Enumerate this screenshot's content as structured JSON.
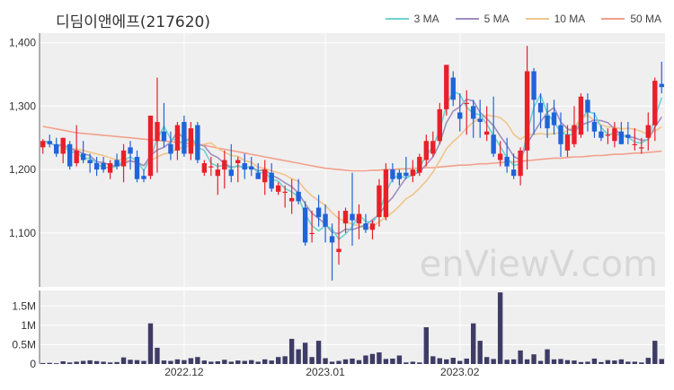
{
  "colors": {
    "up": "#e8202a",
    "down": "#1f64d8",
    "ma3": "#6fd2d2",
    "ma5": "#a08fc0",
    "ma10": "#f1c48b",
    "ma50": "#f2a08b",
    "volume": "#3e3c66",
    "panel_bg": "#efefef",
    "grid": "#ffffff"
  },
  "chart_data": {
    "type": "candlestick",
    "title": "디딤이앤에프(217620)",
    "watermark": "enViewV.com",
    "legend": [
      "3 MA",
      "5 MA",
      "10 MA",
      "50 MA"
    ],
    "legend_position": "top-right",
    "price_axis": {
      "ticks": [
        "1,100",
        "1,200",
        "1,300",
        "1,400"
      ],
      "tick_values": [
        1100,
        1200,
        1300,
        1400
      ],
      "range": [
        1015,
        1415
      ]
    },
    "volume_axis": {
      "ticks": [
        "0",
        "0.5M",
        "1M",
        "1.5M"
      ],
      "tick_values": [
        0,
        500000,
        1000000,
        1500000
      ],
      "range": [
        0,
        1900000
      ]
    },
    "x_labels": [
      {
        "index": 21,
        "label": "2022.12"
      },
      {
        "index": 42,
        "label": "2023.01"
      },
      {
        "index": 62,
        "label": "2023.02"
      }
    ],
    "ohlc": [
      [
        1235,
        1248,
        1225,
        1245
      ],
      [
        1245,
        1255,
        1235,
        1240
      ],
      [
        1240,
        1250,
        1220,
        1225
      ],
      [
        1225,
        1250,
        1210,
        1250
      ],
      [
        1240,
        1245,
        1200,
        1205
      ],
      [
        1210,
        1270,
        1205,
        1230
      ],
      [
        1225,
        1245,
        1210,
        1215
      ],
      [
        1215,
        1225,
        1195,
        1210
      ],
      [
        1210,
        1220,
        1190,
        1200
      ],
      [
        1210,
        1220,
        1195,
        1200
      ],
      [
        1195,
        1215,
        1185,
        1210
      ],
      [
        1215,
        1225,
        1200,
        1205
      ],
      [
        1205,
        1240,
        1180,
        1230
      ],
      [
        1235,
        1245,
        1200,
        1225
      ],
      [
        1220,
        1230,
        1180,
        1185
      ],
      [
        1190,
        1200,
        1180,
        1185
      ],
      [
        1190,
        1285,
        1185,
        1285
      ],
      [
        1245,
        1345,
        1195,
        1275
      ],
      [
        1260,
        1305,
        1235,
        1245
      ],
      [
        1240,
        1260,
        1215,
        1225
      ],
      [
        1230,
        1275,
        1215,
        1270
      ],
      [
        1275,
        1285,
        1220,
        1225
      ],
      [
        1225,
        1275,
        1215,
        1265
      ],
      [
        1270,
        1275,
        1210,
        1215
      ],
      [
        1195,
        1215,
        1190,
        1210
      ],
      [
        1205,
        1220,
        1190,
        1205
      ],
      [
        1190,
        1210,
        1160,
        1200
      ],
      [
        1200,
        1230,
        1170,
        1215
      ],
      [
        1200,
        1240,
        1180,
        1190
      ],
      [
        1210,
        1220,
        1180,
        1215
      ],
      [
        1210,
        1225,
        1185,
        1200
      ],
      [
        1205,
        1220,
        1190,
        1200
      ],
      [
        1195,
        1210,
        1185,
        1185
      ],
      [
        1180,
        1215,
        1160,
        1200
      ],
      [
        1195,
        1210,
        1165,
        1170
      ],
      [
        1165,
        1180,
        1160,
        1175
      ],
      [
        1165,
        1175,
        1140,
        1165
      ],
      [
        1150,
        1185,
        1130,
        1155
      ],
      [
        1165,
        1185,
        1145,
        1150
      ],
      [
        1140,
        1150,
        1080,
        1085
      ],
      [
        1100,
        1135,
        1085,
        1100
      ],
      [
        1140,
        1160,
        1110,
        1125
      ],
      [
        1130,
        1145,
        1085,
        1110
      ],
      [
        1095,
        1115,
        1025,
        1085
      ],
      [
        1070,
        1135,
        1050,
        1075
      ],
      [
        1115,
        1140,
        1100,
        1135
      ],
      [
        1130,
        1195,
        1080,
        1120
      ],
      [
        1115,
        1145,
        1090,
        1130
      ],
      [
        1115,
        1130,
        1100,
        1105
      ],
      [
        1105,
        1120,
        1090,
        1115
      ],
      [
        1125,
        1185,
        1110,
        1175
      ],
      [
        1125,
        1210,
        1120,
        1200
      ],
      [
        1200,
        1210,
        1180,
        1185
      ],
      [
        1195,
        1200,
        1175,
        1185
      ],
      [
        1195,
        1220,
        1185,
        1190
      ],
      [
        1190,
        1215,
        1180,
        1200
      ],
      [
        1195,
        1225,
        1190,
        1220
      ],
      [
        1215,
        1255,
        1205,
        1245
      ],
      [
        1225,
        1260,
        1220,
        1245
      ],
      [
        1245,
        1305,
        1240,
        1295
      ],
      [
        1295,
        1365,
        1285,
        1365
      ],
      [
        1345,
        1355,
        1300,
        1310
      ],
      [
        1290,
        1320,
        1260,
        1280
      ],
      [
        1305,
        1325,
        1255,
        1305
      ],
      [
        1300,
        1310,
        1250,
        1280
      ],
      [
        1280,
        1310,
        1250,
        1275
      ],
      [
        1255,
        1300,
        1245,
        1260
      ],
      [
        1255,
        1315,
        1220,
        1225
      ],
      [
        1215,
        1245,
        1205,
        1225
      ],
      [
        1220,
        1250,
        1195,
        1205
      ],
      [
        1200,
        1225,
        1185,
        1190
      ],
      [
        1190,
        1235,
        1175,
        1230
      ],
      [
        1230,
        1395,
        1200,
        1355
      ],
      [
        1355,
        1360,
        1255,
        1310
      ],
      [
        1305,
        1320,
        1265,
        1290
      ],
      [
        1285,
        1305,
        1250,
        1265
      ],
      [
        1290,
        1310,
        1255,
        1270
      ],
      [
        1270,
        1290,
        1220,
        1240
      ],
      [
        1230,
        1270,
        1220,
        1255
      ],
      [
        1240,
        1300,
        1235,
        1270
      ],
      [
        1255,
        1320,
        1250,
        1315
      ],
      [
        1310,
        1320,
        1260,
        1290
      ],
      [
        1275,
        1290,
        1250,
        1260
      ],
      [
        1260,
        1270,
        1245,
        1250
      ],
      [
        1255,
        1265,
        1240,
        1255
      ],
      [
        1245,
        1275,
        1235,
        1265
      ],
      [
        1260,
        1275,
        1240,
        1240
      ],
      [
        1255,
        1275,
        1240,
        1250
      ],
      [
        1240,
        1265,
        1230,
        1240
      ],
      [
        1235,
        1250,
        1225,
        1235
      ],
      [
        1250,
        1290,
        1230,
        1270
      ],
      [
        1270,
        1345,
        1245,
        1340
      ],
      [
        1335,
        1370,
        1320,
        1330
      ]
    ],
    "volume": [
      25000,
      30000,
      20000,
      70000,
      40000,
      60000,
      80000,
      95000,
      75000,
      60000,
      40000,
      50000,
      170000,
      110000,
      100000,
      80000,
      1050000,
      420000,
      90000,
      80000,
      120000,
      100000,
      150000,
      180000,
      90000,
      60000,
      70000,
      110000,
      60000,
      90000,
      80000,
      100000,
      60000,
      120000,
      90000,
      180000,
      200000,
      650000,
      380000,
      550000,
      180000,
      600000,
      150000,
      60000,
      80000,
      120000,
      140000,
      100000,
      220000,
      260000,
      300000,
      130000,
      140000,
      220000,
      40000,
      60000,
      40000,
      950000,
      200000,
      150000,
      120000,
      160000,
      80000,
      140000,
      1050000,
      600000,
      180000,
      130000,
      1850000,
      110000,
      120000,
      350000,
      120000,
      250000,
      80000,
      380000,
      120000,
      130000,
      100000,
      90000,
      50000,
      60000,
      140000,
      50000,
      100000,
      90000,
      120000,
      60000,
      60000,
      40000,
      160000,
      600000,
      130000
    ],
    "ma50": [
      1268,
      1266,
      1264,
      1262,
      1260,
      1258,
      1257,
      1256,
      1255,
      1254,
      1253,
      1252,
      1251,
      1250,
      1249,
      1248,
      1247,
      1246,
      1245,
      1244,
      1243,
      1242,
      1241,
      1240,
      1238,
      1236,
      1234,
      1232,
      1230,
      1228,
      1226,
      1224,
      1222,
      1220,
      1218,
      1216,
      1214,
      1212,
      1210,
      1208,
      1206,
      1204,
      1202,
      1201,
      1200,
      1199,
      1198,
      1198,
      1198,
      1199,
      1199,
      1200,
      1200,
      1201,
      1201,
      1202,
      1202,
      1203,
      1203,
      1204,
      1205,
      1206,
      1207,
      1207,
      1208,
      1209,
      1209,
      1210,
      1211,
      1212,
      1212,
      1213,
      1214,
      1215,
      1216,
      1217,
      1218,
      1218,
      1219,
      1220,
      1220,
      1221,
      1222,
      1222,
      1223,
      1224,
      1224,
      1225,
      1226,
      1226,
      1227,
      1228,
      1229
    ]
  }
}
